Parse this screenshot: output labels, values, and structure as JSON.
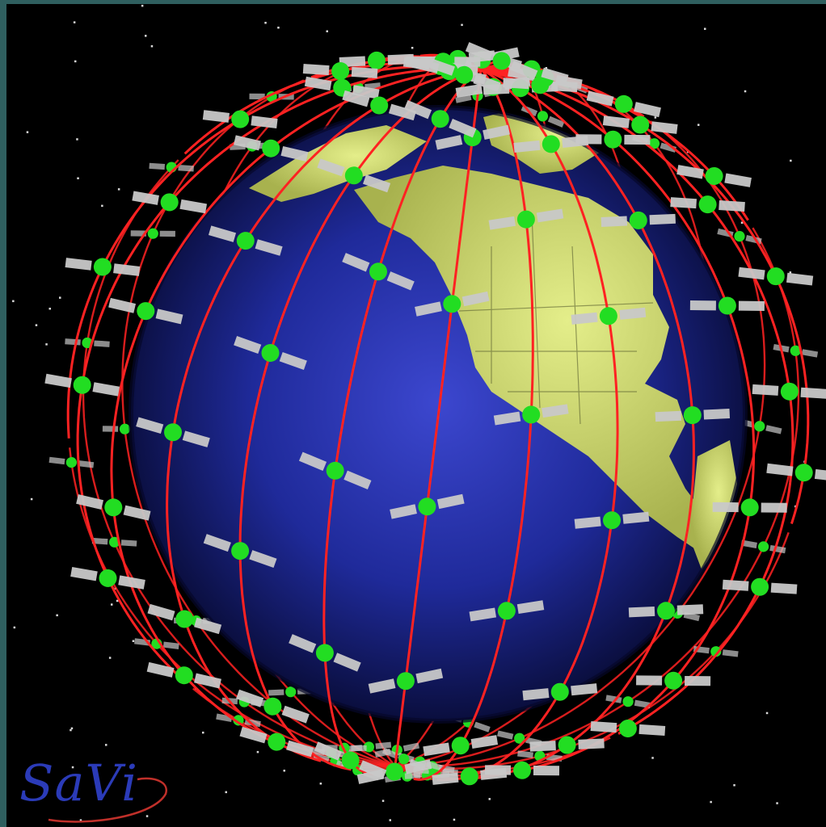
{
  "image": {
    "subject": "satellite-constellation-around-earth",
    "logo_text": "SaVi"
  },
  "colors": {
    "background_frame": "#2f5f5f",
    "space": "#000000",
    "ocean_center": "#3b45c8",
    "ocean_edge": "#0a0d3a",
    "land": "#d8e47a",
    "orbit": "#ff2222",
    "satellite_body": "#22dd22",
    "solar_panel": "#c8c8c8",
    "logo": "#2b3bb8"
  },
  "icons": {
    "earth": "globe-icon",
    "satellite": "satellite-icon",
    "orbit": "orbit-ring",
    "star": "star-dot"
  }
}
